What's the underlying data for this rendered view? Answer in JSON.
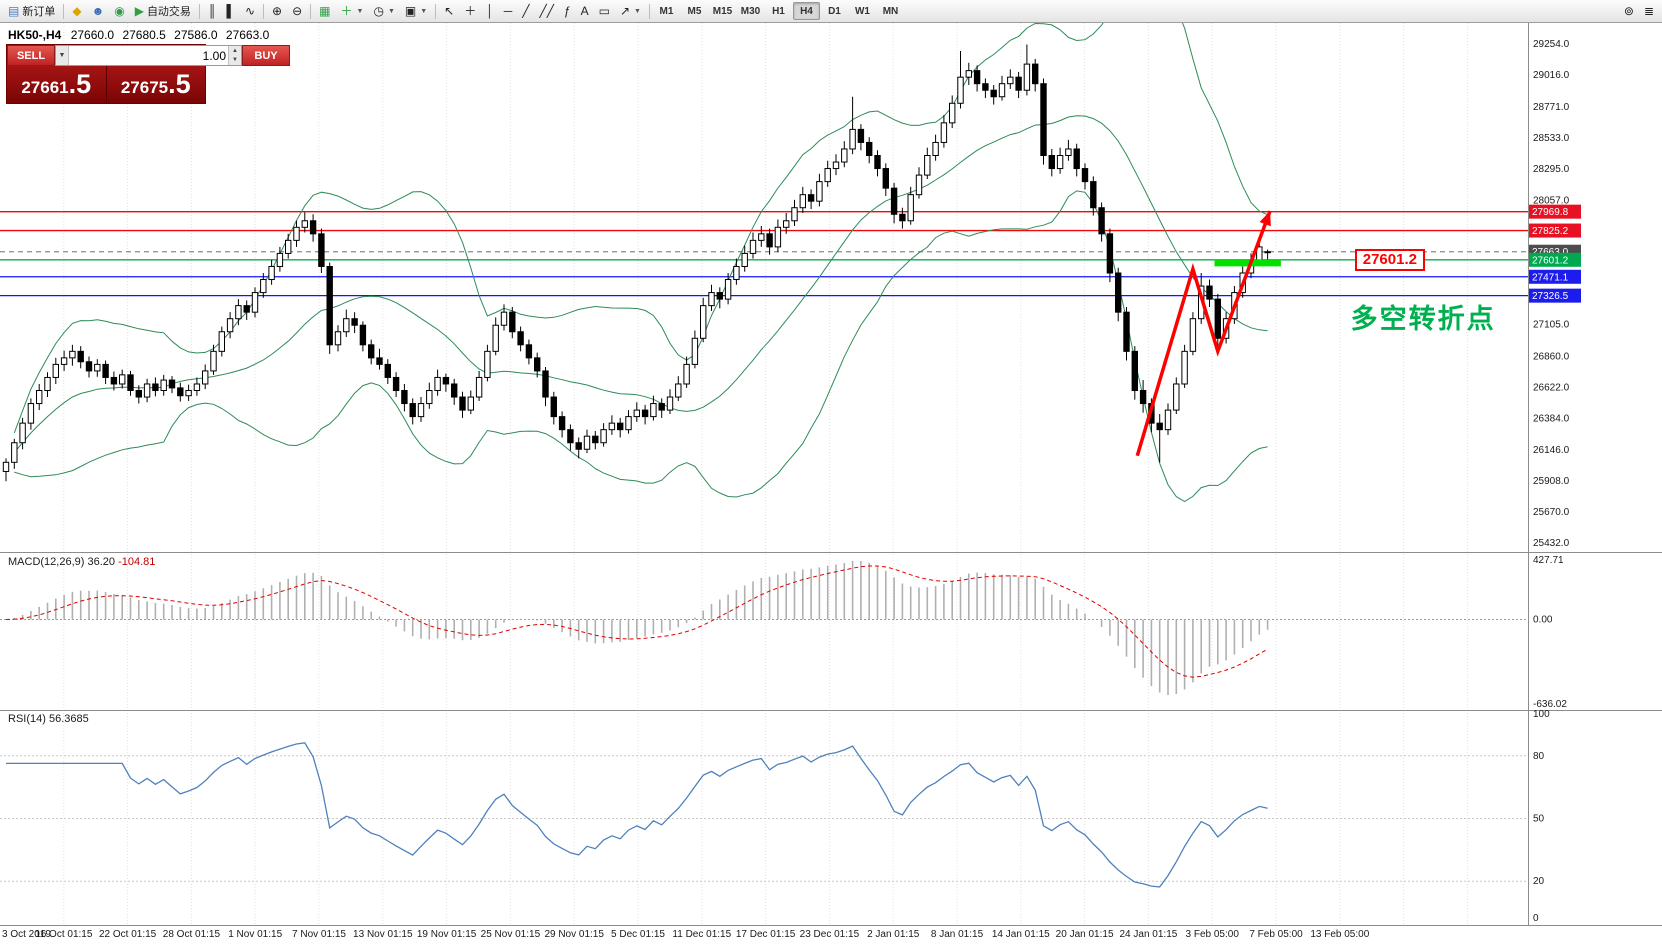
{
  "toolbar": {
    "new_order_label": "新订单",
    "auto_trading_label": "自动交易",
    "timeframes": [
      "M1",
      "M5",
      "M15",
      "M30",
      "H1",
      "H4",
      "D1",
      "W1",
      "MN"
    ],
    "active_timeframe": "H4",
    "icons": {
      "new_order": "▤",
      "profiles": "◆",
      "market_watch": "☻",
      "navigator": "◉",
      "auto_play": "▶",
      "chart_bars": "║",
      "chart_candles": "▌",
      "chart_line": "∿",
      "zoom_in": "⊕",
      "zoom_out": "⊖",
      "tile_windows": "▦",
      "indicators": "＋",
      "periods": "◷",
      "templates": "▣",
      "cursor": "↖",
      "crosshair": "＋",
      "vline": "│",
      "hline": "─",
      "trendline": "╱",
      "channel": "╱╱",
      "fibonacci": "ƒ",
      "text": "A",
      "label": "▭",
      "arrows": "↗",
      "caret": "▼",
      "search": "⊚",
      "menu": "≣",
      "spin_up": "▲",
      "spin_down": "▼"
    }
  },
  "order_panel": {
    "sell_label": "SELL",
    "buy_label": "BUY",
    "volume": "1.00",
    "sell_price_prefix": "27661",
    "sell_price_big": ".5",
    "buy_price_prefix": "27675",
    "buy_price_big": ".5"
  },
  "chart_data": {
    "type": "candlestick",
    "symbol": "HK50-,H4",
    "timeframe": "H4",
    "ohlc_display": {
      "open": "27660.0",
      "high": "27680.5",
      "low": "27586.0",
      "close": "27663.0"
    },
    "price_min": 25432,
    "price_max": 29254,
    "price_ticks": [
      29254,
      29016,
      28771,
      28533,
      28295,
      28057,
      27105,
      26860,
      26622,
      26384,
      26146,
      25908,
      25670,
      25432
    ],
    "time_labels": [
      "3 Oct 2019",
      "16 Oct 01:15",
      "22 Oct 01:15",
      "28 Oct 01:15",
      "1 Nov 01:15",
      "7 Nov 01:15",
      "13 Nov 01:15",
      "19 Nov 01:15",
      "25 Nov 01:15",
      "29 Nov 01:15",
      "5 Dec 01:15",
      "11 Dec 01:15",
      "17 Dec 01:15",
      "23 Dec 01:15",
      "2 Jan 01:15",
      "8 Jan 01:15",
      "14 Jan 01:15",
      "20 Jan 01:15",
      "24 Jan 01:15",
      "3 Feb 05:00",
      "7 Feb 05:00",
      "13 Feb 05:00"
    ],
    "bollinger": {
      "period": 20,
      "deviation": 2,
      "color": "#2e8b57"
    },
    "candles": [
      [
        25980,
        26080,
        25905,
        26050
      ],
      [
        26050,
        26230,
        26000,
        26200
      ],
      [
        26200,
        26390,
        26150,
        26350
      ],
      [
        26350,
        26540,
        26300,
        26500
      ],
      [
        26500,
        26650,
        26450,
        26600
      ],
      [
        26600,
        26740,
        26550,
        26700
      ],
      [
        26700,
        26850,
        26650,
        26800
      ],
      [
        26800,
        26905,
        26750,
        26850
      ],
      [
        26850,
        26950,
        26790,
        26900
      ],
      [
        26900,
        26940,
        26770,
        26820
      ],
      [
        26820,
        26860,
        26700,
        26750
      ],
      [
        26750,
        26840,
        26705,
        26800
      ],
      [
        26800,
        26830,
        26650,
        26700
      ],
      [
        26700,
        26745,
        26600,
        26650
      ],
      [
        26650,
        26760,
        26615,
        26720
      ],
      [
        26720,
        26750,
        26560,
        26600
      ],
      [
        26600,
        26640,
        26500,
        26550
      ],
      [
        26550,
        26690,
        26510,
        26650
      ],
      [
        26650,
        26700,
        26555,
        26600
      ],
      [
        26600,
        26720,
        26560,
        26680
      ],
      [
        26680,
        26710,
        26580,
        26620
      ],
      [
        26620,
        26660,
        26515,
        26560
      ],
      [
        26560,
        26645,
        26520,
        26600
      ],
      [
        26600,
        26700,
        26560,
        26650
      ],
      [
        26650,
        26800,
        26610,
        26750
      ],
      [
        26750,
        26950,
        26720,
        26900
      ],
      [
        26900,
        27090,
        26860,
        27050
      ],
      [
        27050,
        27200,
        27000,
        27150
      ],
      [
        27150,
        27300,
        27100,
        27250
      ],
      [
        27250,
        27290,
        27140,
        27200
      ],
      [
        27200,
        27390,
        27160,
        27350
      ],
      [
        27350,
        27500,
        27310,
        27450
      ],
      [
        27450,
        27600,
        27410,
        27550
      ],
      [
        27550,
        27700,
        27510,
        27650
      ],
      [
        27650,
        27800,
        27610,
        27750
      ],
      [
        27750,
        27900,
        27700,
        27850
      ],
      [
        27850,
        27965,
        27810,
        27900
      ],
      [
        27900,
        27950,
        27740,
        27800
      ],
      [
        27800,
        27840,
        27500,
        27550
      ],
      [
        27550,
        27580,
        26880,
        26950
      ],
      [
        26950,
        27100,
        26900,
        27050
      ],
      [
        27050,
        27220,
        27010,
        27150
      ],
      [
        27150,
        27200,
        27040,
        27100
      ],
      [
        27100,
        27130,
        26900,
        26950
      ],
      [
        26950,
        26990,
        26800,
        26850
      ],
      [
        26850,
        26920,
        26760,
        26800
      ],
      [
        26800,
        26840,
        26650,
        26700
      ],
      [
        26700,
        26740,
        26550,
        26600
      ],
      [
        26600,
        26650,
        26440,
        26500
      ],
      [
        26500,
        26540,
        26340,
        26400
      ],
      [
        26400,
        26550,
        26360,
        26500
      ],
      [
        26500,
        26660,
        26460,
        26600
      ],
      [
        26600,
        26760,
        26560,
        26700
      ],
      [
        26700,
        26730,
        26590,
        26650
      ],
      [
        26650,
        26690,
        26490,
        26550
      ],
      [
        26550,
        26590,
        26390,
        26450
      ],
      [
        26450,
        26600,
        26420,
        26550
      ],
      [
        26550,
        26750,
        26520,
        26700
      ],
      [
        26700,
        26950,
        26670,
        26900
      ],
      [
        26900,
        27160,
        26870,
        27100
      ],
      [
        27100,
        27260,
        27060,
        27200
      ],
      [
        27200,
        27240,
        27000,
        27050
      ],
      [
        27050,
        27090,
        26900,
        26950
      ],
      [
        26950,
        26990,
        26800,
        26850
      ],
      [
        26850,
        26890,
        26700,
        26750
      ],
      [
        26750,
        26780,
        26480,
        26550
      ],
      [
        26550,
        26590,
        26340,
        26400
      ],
      [
        26400,
        26440,
        26240,
        26300
      ],
      [
        26300,
        26340,
        26140,
        26200
      ],
      [
        26200,
        26240,
        26080,
        26150
      ],
      [
        26150,
        26300,
        26120,
        26250
      ],
      [
        26250,
        26290,
        26150,
        26200
      ],
      [
        26200,
        26350,
        26170,
        26300
      ],
      [
        26300,
        26410,
        26260,
        26350
      ],
      [
        26350,
        26390,
        26240,
        26300
      ],
      [
        26300,
        26450,
        26270,
        26400
      ],
      [
        26400,
        26510,
        26360,
        26450
      ],
      [
        26450,
        26490,
        26340,
        26400
      ],
      [
        26400,
        26560,
        26370,
        26500
      ],
      [
        26500,
        26540,
        26390,
        26450
      ],
      [
        26450,
        26610,
        26420,
        26550
      ],
      [
        26550,
        26710,
        26520,
        26650
      ],
      [
        26650,
        26860,
        26620,
        26800
      ],
      [
        26800,
        27060,
        26770,
        27000
      ],
      [
        27000,
        27310,
        26970,
        27250
      ],
      [
        27250,
        27410,
        27210,
        27350
      ],
      [
        27350,
        27390,
        27230,
        27300
      ],
      [
        27300,
        27500,
        27260,
        27450
      ],
      [
        27450,
        27610,
        27410,
        27550
      ],
      [
        27550,
        27710,
        27510,
        27650
      ],
      [
        27650,
        27810,
        27610,
        27750
      ],
      [
        27750,
        27860,
        27700,
        27800
      ],
      [
        27800,
        27840,
        27640,
        27700
      ],
      [
        27700,
        27910,
        27660,
        27850
      ],
      [
        27850,
        27960,
        27800,
        27900
      ],
      [
        27900,
        28060,
        27860,
        28000
      ],
      [
        28000,
        28160,
        27960,
        28100
      ],
      [
        28100,
        28140,
        27990,
        28050
      ],
      [
        28050,
        28260,
        28010,
        28200
      ],
      [
        28200,
        28360,
        28160,
        28300
      ],
      [
        28300,
        28410,
        28250,
        28350
      ],
      [
        28350,
        28510,
        28310,
        28450
      ],
      [
        28450,
        28850,
        28410,
        28600
      ],
      [
        28600,
        28640,
        28440,
        28500
      ],
      [
        28500,
        28540,
        28340,
        28400
      ],
      [
        28400,
        28440,
        28240,
        28300
      ],
      [
        28300,
        28340,
        28090,
        28150
      ],
      [
        28150,
        28190,
        27880,
        27950
      ],
      [
        27950,
        28000,
        27840,
        27900
      ],
      [
        27900,
        28160,
        27870,
        28100
      ],
      [
        28100,
        28310,
        28070,
        28250
      ],
      [
        28250,
        28460,
        28220,
        28400
      ],
      [
        28400,
        28560,
        28360,
        28500
      ],
      [
        28500,
        28710,
        28460,
        28650
      ],
      [
        28650,
        28860,
        28610,
        28800
      ],
      [
        28800,
        29200,
        28760,
        29000
      ],
      [
        29000,
        29110,
        28940,
        29050
      ],
      [
        29050,
        29090,
        28890,
        28950
      ],
      [
        28950,
        28990,
        28840,
        28900
      ],
      [
        28900,
        28940,
        28790,
        28850
      ],
      [
        28850,
        29010,
        28820,
        28950
      ],
      [
        28950,
        29060,
        28910,
        29000
      ],
      [
        29000,
        29040,
        28840,
        28900
      ],
      [
        28900,
        29250,
        28860,
        29100
      ],
      [
        29100,
        29140,
        28890,
        28950
      ],
      [
        28950,
        28990,
        28330,
        28400
      ],
      [
        28400,
        28450,
        28240,
        28300
      ],
      [
        28300,
        28460,
        28260,
        28400
      ],
      [
        28400,
        28520,
        28360,
        28450
      ],
      [
        28450,
        28490,
        28240,
        28300
      ],
      [
        28300,
        28340,
        28140,
        28200
      ],
      [
        28200,
        28240,
        27940,
        28000
      ],
      [
        28000,
        28040,
        27740,
        27800
      ],
      [
        27800,
        27840,
        27430,
        27500
      ],
      [
        27500,
        27540,
        27130,
        27200
      ],
      [
        27200,
        27240,
        26830,
        26900
      ],
      [
        26900,
        26940,
        26530,
        26600
      ],
      [
        26600,
        26680,
        26430,
        26500
      ],
      [
        26500,
        26540,
        26280,
        26350
      ],
      [
        26350,
        26420,
        26050,
        26300
      ],
      [
        26300,
        26500,
        26260,
        26450
      ],
      [
        26450,
        26700,
        26420,
        26650
      ],
      [
        26650,
        26950,
        26620,
        26900
      ],
      [
        26900,
        27200,
        26870,
        27150
      ],
      [
        27150,
        27500,
        27110,
        27400
      ],
      [
        27400,
        27450,
        27240,
        27300
      ],
      [
        27300,
        27340,
        26900,
        27000
      ],
      [
        27000,
        27200,
        26960,
        27150
      ],
      [
        27150,
        27400,
        27110,
        27350
      ],
      [
        27350,
        27550,
        27310,
        27500
      ],
      [
        27500,
        27650,
        27460,
        27600
      ],
      [
        27600,
        27750,
        27560,
        27700
      ],
      [
        27660,
        27680,
        27586,
        27663
      ]
    ],
    "hlines": [
      {
        "price": 27969.8,
        "label": "27969.8",
        "color": "#f00808",
        "label_bg": "#e81123",
        "dash": false
      },
      {
        "price": 27825.2,
        "label": "27825.2",
        "color": "#f00808",
        "label_bg": "#e81123",
        "dash": false
      },
      {
        "price": 27663.0,
        "label": "27663.0",
        "color": "#8a8a8a",
        "label_bg": "#4d4d4d",
        "dash": true
      },
      {
        "price": 27601.2,
        "label": "27601.2",
        "color": "#00b050",
        "label_bg": "#00a94f",
        "dash": false
      },
      {
        "price": 27471.1,
        "label": "27471.1",
        "color": "#1414ff",
        "label_bg": "#1c1cec",
        "dash": false
      },
      {
        "price": 27326.5,
        "label": "27326.5",
        "color": "#1414ff",
        "label_bg": "#1c1cec",
        "dash": false
      }
    ],
    "annotations": {
      "zigzag": {
        "color": "#ff0000",
        "points": [
          [
            136.3,
            26100
          ],
          [
            143.0,
            27530
          ],
          [
            146.0,
            26900
          ],
          [
            152.3,
            27975
          ]
        ]
      },
      "green_segment": {
        "color": "#00e100",
        "price": 27578,
        "from_i": 145.6,
        "to_i": 153.6,
        "width": 7
      },
      "price_callout": {
        "text": "27601.2",
        "color": "#ff0000",
        "i": 162.5,
        "price": 27601.2
      },
      "cjk_note": {
        "text": "多空转折点",
        "color": "#00b050",
        "i": 162.0,
        "price": 27190
      }
    },
    "macd": {
      "label": "MACD(12,26,9)",
      "value_main": "36.20",
      "value_signal": "-104.81",
      "params": [
        12,
        26,
        9
      ],
      "scale_max": 427.71,
      "scale_min": -636.02,
      "axis": [
        {
          "v": 427.71,
          "t": "427.71"
        },
        {
          "v": 0,
          "t": "0.00"
        },
        {
          "v": -636.02,
          "t": "-636.02"
        }
      ],
      "histogram_color": "#b0b0b0",
      "signal_color": "#e00000"
    },
    "rsi": {
      "label": "RSI(14)",
      "value": "56.3685",
      "period": 14,
      "axis": [
        100,
        80,
        50,
        20,
        0
      ],
      "levels": [
        80,
        50,
        20
      ],
      "color": "#4f81bd"
    }
  }
}
